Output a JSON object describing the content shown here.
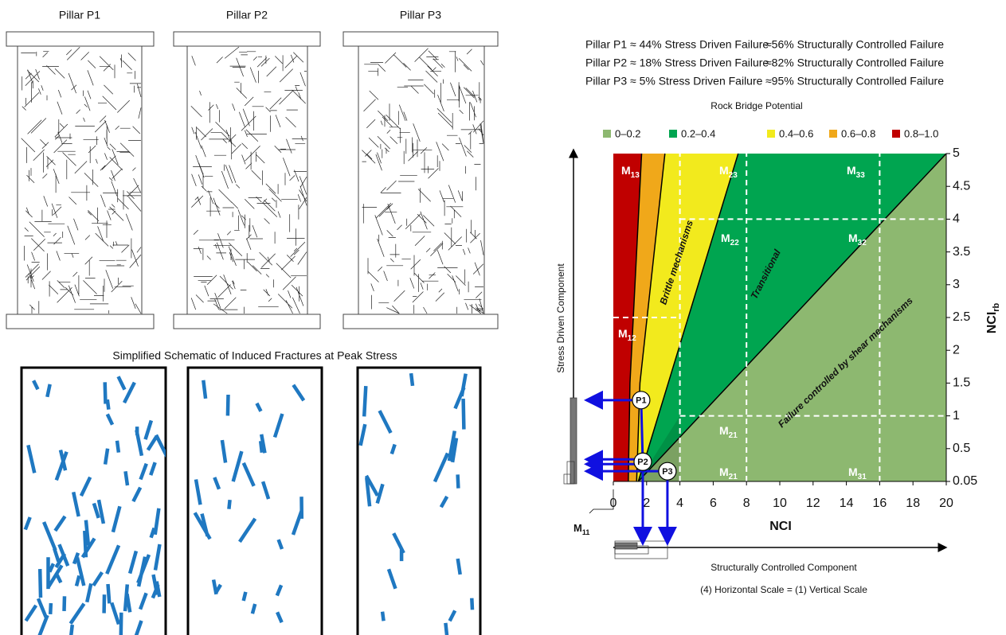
{
  "pillars": {
    "titles": [
      "Pillar P1",
      "Pillar P2",
      "Pillar P3"
    ]
  },
  "schematic_title": "Simplified Schematic of Induced Fractures at Peak Stress",
  "failure_summary": [
    {
      "stress": "Pillar P1 ≈ 44% Stress Driven Failure",
      "structural": "≈56% Structurally Controlled Failure"
    },
    {
      "stress": "Pillar P2 ≈ 18% Stress Driven Failure",
      "structural": "≈82% Structurally Controlled Failure"
    },
    {
      "stress": "Pillar P3 ≈ 5% Stress Driven Failure",
      "structural": "≈95% Structurally Controlled Failure"
    }
  ],
  "chart_data": {
    "type": "zone",
    "legend_title": "Rock Bridge Potential",
    "series": [
      {
        "name": "0–0.2",
        "color": "#8db870"
      },
      {
        "name": "0.2–0.4",
        "color": "#00a550"
      },
      {
        "name": "0.4–0.6",
        "color": "#f2ea1d"
      },
      {
        "name": "0.6–0.8",
        "color": "#f0a81a"
      },
      {
        "name": "0.8–1.0",
        "color": "#c00000"
      }
    ],
    "xlabel": "NCI",
    "ylabel": "NCI",
    "ylabel_sub": "rb",
    "xlim": [
      0,
      20
    ],
    "xticks": [
      0,
      2,
      4,
      6,
      8,
      10,
      12,
      14,
      16,
      18,
      20
    ],
    "ylim": [
      0.05,
      5
    ],
    "yticks": [
      0.05,
      0.5,
      1,
      1.5,
      2,
      2.5,
      3,
      3.5,
      4,
      4.5,
      5
    ],
    "boundaries": [
      {
        "x": [
          0.9,
          1.0,
          1.7
        ],
        "y": [
          0.05,
          1.5,
          5
        ]
      },
      {
        "x": [
          1.4,
          1.6,
          3.1
        ],
        "y": [
          0.05,
          1.5,
          5
        ]
      },
      {
        "x": [
          1.5,
          7.5
        ],
        "y": [
          0.05,
          5
        ]
      },
      {
        "x": [
          1.5,
          20
        ],
        "y": [
          0.05,
          5
        ]
      }
    ],
    "zone_lines": [
      {
        "x": [
          4,
          4
        ],
        "y": [
          0.05,
          5
        ]
      },
      {
        "x": [
          8,
          8
        ],
        "y": [
          0.05,
          5
        ]
      },
      {
        "x": [
          16,
          16
        ],
        "y": [
          0.05,
          5
        ]
      },
      {
        "x": [
          4,
          20
        ],
        "y": [
          4,
          4
        ]
      },
      {
        "x": [
          0,
          4
        ],
        "y": [
          2.5,
          2.5
        ]
      },
      {
        "x": [
          4,
          20
        ],
        "y": [
          1,
          1
        ]
      }
    ],
    "zone_labels": [
      {
        "text": "M",
        "sub": "13"
      },
      {
        "text": "M",
        "sub": "23"
      },
      {
        "text": "M",
        "sub": "33"
      },
      {
        "text": "M",
        "sub": "22"
      },
      {
        "text": "M",
        "sub": "32"
      },
      {
        "text": "M",
        "sub": "12"
      },
      {
        "text": "M",
        "sub": "21"
      },
      {
        "text": "M",
        "sub": "21"
      },
      {
        "text": "M",
        "sub": "31"
      }
    ],
    "annotations": [
      "Brittle mechanisms",
      "Transitional",
      "Failure controlled by shear mechanisms"
    ],
    "points": {
      "labels": [
        "P1",
        "P2",
        "P3"
      ],
      "x": [
        1.67,
        1.77,
        3.25
      ],
      "y": [
        1.24,
        0.32,
        0.19
      ]
    },
    "corner_label": {
      "text": "M",
      "sub": "11"
    },
    "vertical_component": "Stress Driven Component",
    "horizontal_component": "Structurally Controlled Component",
    "scale_note": "(4) Horizontal Scale = (1) Vertical Scale"
  }
}
